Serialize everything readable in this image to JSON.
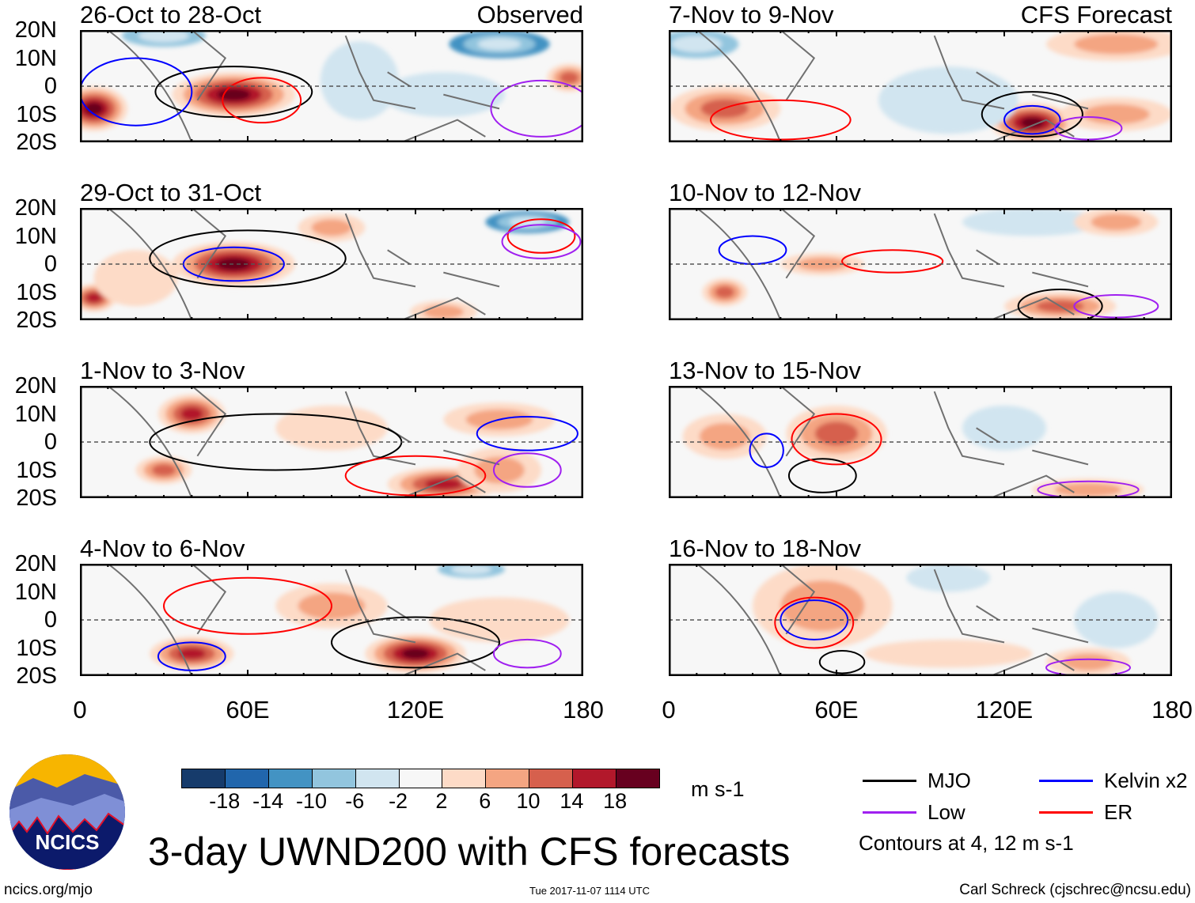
{
  "panels": [
    {
      "title": "26-Oct to 28-Oct",
      "tag": "Observed",
      "features": [
        [
          5,
          -8,
          12,
          8,
          20
        ],
        [
          55,
          -3,
          22,
          8,
          20
        ],
        [
          175,
          3,
          8,
          5,
          12
        ],
        [
          130,
          -3,
          22,
          8,
          -4
        ],
        [
          100,
          2,
          14,
          14,
          -3
        ],
        [
          150,
          15,
          18,
          5,
          -10
        ],
        [
          30,
          18,
          15,
          4,
          -8
        ]
      ],
      "contours": [
        [
          "mjo",
          55,
          -2,
          28,
          9
        ],
        [
          "kelvin",
          20,
          -2,
          20,
          12
        ],
        [
          "er",
          65,
          -5,
          14,
          8
        ],
        [
          "low",
          165,
          -8,
          18,
          10
        ]
      ]
    },
    {
      "title": "29-Oct to 31-Oct",
      "tag": "",
      "features": [
        [
          55,
          0,
          22,
          8,
          20
        ],
        [
          5,
          -12,
          8,
          5,
          16
        ],
        [
          90,
          13,
          12,
          5,
          6
        ],
        [
          160,
          15,
          15,
          4,
          -12
        ],
        [
          130,
          -17,
          12,
          4,
          8
        ],
        [
          20,
          -5,
          15,
          10,
          4
        ]
      ],
      "contours": [
        [
          "mjo",
          60,
          2,
          35,
          10
        ],
        [
          "kelvin",
          55,
          0,
          18,
          6
        ],
        [
          "er",
          165,
          10,
          12,
          6
        ],
        [
          "low",
          165,
          8,
          14,
          6
        ]
      ]
    },
    {
      "title": "1-Nov to 3-Nov",
      "tag": "",
      "features": [
        [
          40,
          10,
          12,
          7,
          14
        ],
        [
          30,
          -10,
          10,
          5,
          10
        ],
        [
          130,
          -15,
          20,
          6,
          16
        ],
        [
          150,
          8,
          20,
          6,
          6
        ],
        [
          90,
          5,
          20,
          8,
          4
        ],
        [
          150,
          -10,
          15,
          8,
          6
        ]
      ],
      "contours": [
        [
          "mjo",
          70,
          0,
          45,
          10
        ],
        [
          "kelvin",
          160,
          3,
          18,
          6
        ],
        [
          "er",
          120,
          -12,
          25,
          7
        ],
        [
          "low",
          160,
          -10,
          12,
          6
        ]
      ]
    },
    {
      "title": "4-Nov to 6-Nov",
      "tag": "",
      "features": [
        [
          40,
          -12,
          15,
          6,
          16
        ],
        [
          120,
          -12,
          18,
          7,
          18
        ],
        [
          90,
          5,
          20,
          8,
          6
        ],
        [
          150,
          0,
          25,
          8,
          4
        ],
        [
          140,
          18,
          12,
          3,
          -6
        ]
      ],
      "contours": [
        [
          "mjo",
          120,
          -8,
          30,
          9
        ],
        [
          "kelvin",
          40,
          -13,
          12,
          5
        ],
        [
          "er",
          60,
          5,
          30,
          10
        ],
        [
          "low",
          160,
          -12,
          12,
          5
        ]
      ]
    },
    {
      "title": "7-Nov to 9-Nov",
      "tag": "CFS Forecast",
      "features": [
        [
          130,
          -13,
          15,
          7,
          18
        ],
        [
          20,
          -8,
          20,
          8,
          10
        ],
        [
          160,
          -10,
          20,
          6,
          6
        ],
        [
          160,
          15,
          25,
          6,
          6
        ],
        [
          10,
          15,
          15,
          5,
          -8
        ],
        [
          100,
          -5,
          25,
          12,
          -3
        ]
      ],
      "contours": [
        [
          "mjo",
          130,
          -10,
          18,
          8
        ],
        [
          "kelvin",
          130,
          -12,
          10,
          5
        ],
        [
          "er",
          40,
          -12,
          25,
          7
        ],
        [
          "low",
          150,
          -15,
          12,
          4
        ]
      ]
    },
    {
      "title": "10-Nov to 12-Nov",
      "tag": "",
      "features": [
        [
          55,
          0,
          15,
          4,
          8
        ],
        [
          20,
          -10,
          8,
          5,
          12
        ],
        [
          140,
          -15,
          20,
          5,
          10
        ],
        [
          130,
          15,
          25,
          5,
          -4
        ],
        [
          160,
          15,
          15,
          5,
          6
        ]
      ],
      "contours": [
        [
          "mjo",
          140,
          -15,
          15,
          6
        ],
        [
          "kelvin",
          30,
          5,
          12,
          5
        ],
        [
          "er",
          80,
          1,
          18,
          4
        ],
        [
          "low",
          160,
          -15,
          15,
          4
        ]
      ]
    },
    {
      "title": "13-Nov to 15-Nov",
      "tag": "",
      "features": [
        [
          60,
          3,
          18,
          10,
          12
        ],
        [
          20,
          2,
          15,
          8,
          6
        ],
        [
          150,
          -17,
          20,
          4,
          8
        ],
        [
          120,
          5,
          15,
          8,
          -3
        ]
      ],
      "contours": [
        [
          "mjo",
          55,
          -12,
          12,
          6
        ],
        [
          "kelvin",
          35,
          -3,
          6,
          6
        ],
        [
          "er",
          60,
          1,
          16,
          9
        ],
        [
          "low",
          150,
          -17,
          18,
          3
        ]
      ]
    },
    {
      "title": "16-Nov to 18-Nov",
      "tag": "",
      "features": [
        [
          52,
          0,
          13,
          8,
          20
        ],
        [
          55,
          5,
          25,
          15,
          6
        ],
        [
          100,
          -12,
          30,
          5,
          4
        ],
        [
          150,
          -15,
          15,
          5,
          8
        ],
        [
          100,
          15,
          15,
          5,
          -4
        ],
        [
          160,
          0,
          15,
          10,
          -4
        ]
      ],
      "contours": [
        [
          "mjo",
          62,
          -15,
          8,
          4
        ],
        [
          "kelvin",
          52,
          0,
          12,
          7
        ],
        [
          "er",
          52,
          -1,
          14,
          9
        ],
        [
          "low",
          150,
          -17,
          15,
          3
        ]
      ]
    }
  ],
  "lat_labels": [
    "20N",
    "10N",
    "0",
    "10S",
    "20S"
  ],
  "lon_labels": [
    "0",
    "60E",
    "120E",
    "180"
  ],
  "colorbar": {
    "colors": [
      "#163b6b",
      "#2166ac",
      "#4393c3",
      "#92c5de",
      "#d1e5f0",
      "#f7f7f7",
      "#fddbc7",
      "#f4a582",
      "#d6604d",
      "#b2182b",
      "#67001f"
    ],
    "labels": [
      "-18",
      "-14",
      "-10",
      "-6",
      "-2",
      "2",
      "6",
      "10",
      "14",
      "18"
    ],
    "units": "m s-1"
  },
  "legend": {
    "items": [
      {
        "label": "MJO",
        "color": "#000000"
      },
      {
        "label": "Kelvin x2",
        "color": "#0000ff"
      },
      {
        "label": "Low",
        "color": "#a020f0"
      },
      {
        "label": "ER",
        "color": "#ff0000"
      }
    ],
    "note": "Contours at 4, 12 m s-1"
  },
  "title": "3-day UWND200 with CFS forecasts",
  "logo_text": "NCICS",
  "footer": {
    "url": "ncics.org/mjo",
    "timestamp": "Tue 2017-11-07 1114 UTC",
    "author": "Carl Schreck (cjschrec@ncsu.edu)"
  }
}
